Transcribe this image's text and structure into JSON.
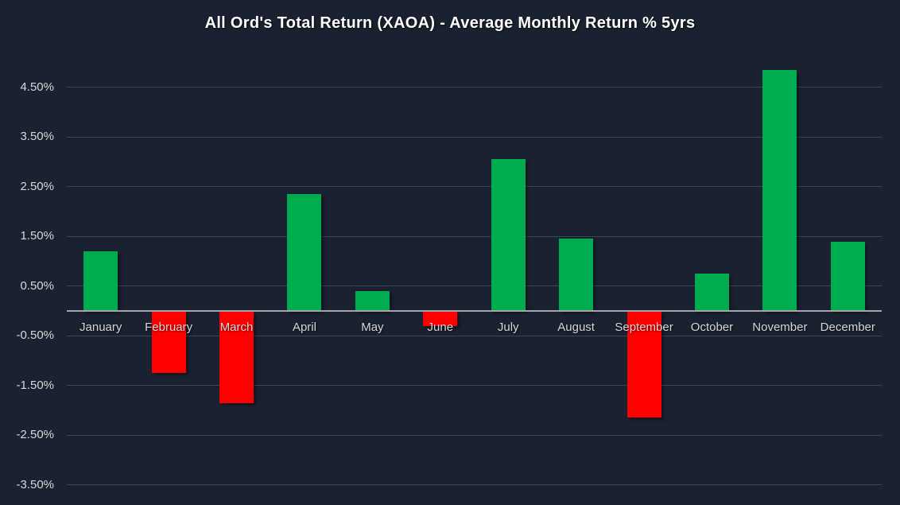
{
  "title": "All Ord's Total Return (XAOA) - Average Monthly Return % 5yrs",
  "colors": {
    "background": "#1a2130",
    "positive_bar": "#00AC50",
    "negative_bar": "#FF0000",
    "gridline": "#3e4555",
    "zero_axis": "#a6a6a6",
    "tick_label": "#d9d9d9",
    "title_text": "#fdfdfd"
  },
  "chart_data": {
    "type": "bar",
    "title": "All Ord's Total Return (XAOA) - Average Monthly Return % 5yrs",
    "xlabel": "",
    "ylabel": "",
    "categories": [
      "January",
      "February",
      "March",
      "April",
      "May",
      "June",
      "July",
      "August",
      "September",
      "October",
      "November",
      "December"
    ],
    "values": [
      1.2,
      -1.25,
      -1.85,
      2.35,
      0.4,
      -0.3,
      3.05,
      1.45,
      -2.15,
      0.75,
      4.85,
      1.4
    ],
    "value_unit": "percent",
    "yticks": [
      4.5,
      3.5,
      2.5,
      1.5,
      0.5,
      -0.5,
      -1.5,
      -2.5,
      -3.5
    ],
    "ytick_labels": [
      "4.50%",
      "3.50%",
      "2.50%",
      "1.50%",
      "0.50%",
      "-0.50%",
      "-1.50%",
      "-2.50%",
      "-3.50%"
    ],
    "ylim": [
      -3.9,
      5.1
    ],
    "grid": true,
    "zero_line": true,
    "legend": false,
    "positive_color": "#00AC50",
    "negative_color": "#FF0000"
  }
}
